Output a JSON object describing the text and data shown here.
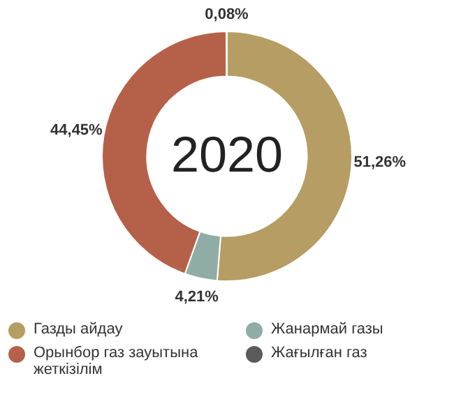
{
  "chart_data": {
    "type": "donut",
    "title": "2020",
    "categories": [
      "Газды айдау",
      "Жанармай газы",
      "Орынбор газ зауытына жеткізілім",
      "Жағылған газ"
    ],
    "values": [
      51.26,
      4.21,
      44.45,
      0.08
    ],
    "colors": [
      "#b59d63",
      "#8fada6",
      "#b5614a",
      "#5a5a5a"
    ],
    "value_labels": [
      "51,26%",
      "4,21%",
      "44,45%",
      "0,08%"
    ],
    "legend": "bottom"
  }
}
